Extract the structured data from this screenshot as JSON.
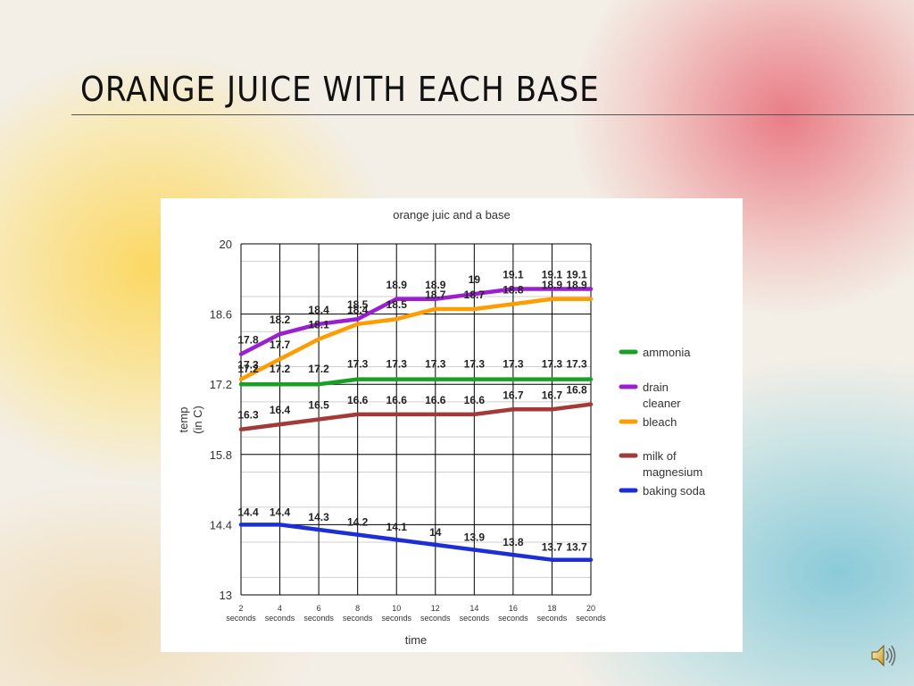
{
  "slide": {
    "title": "ORANGE JUICE WITH EACH BASE"
  },
  "icons": {
    "speaker": "speaker-icon"
  },
  "chart_data": {
    "type": "line",
    "title": "orange juic and a base",
    "xlabel": "time",
    "ylabel": [
      "temp",
      "(in C)"
    ],
    "categories": [
      [
        "2",
        "seconds"
      ],
      [
        "4",
        "seconds"
      ],
      [
        "6",
        "seconds"
      ],
      [
        "8",
        "seconds"
      ],
      [
        "10",
        "seconds"
      ],
      [
        "12",
        "seconds"
      ],
      [
        "14",
        "seconds"
      ],
      [
        "16",
        "seconds"
      ],
      [
        "18",
        "seconds"
      ],
      [
        "20",
        "seconds"
      ]
    ],
    "ylim": [
      13,
      20
    ],
    "yticks": [
      "13",
      "14.4",
      "15.8",
      "17.2",
      "18.6",
      "20"
    ],
    "grid": true,
    "legend_position": "right",
    "series": [
      {
        "name": [
          "ammonia"
        ],
        "color": "#18a025",
        "values": [
          17.2,
          17.2,
          17.2,
          17.3,
          17.3,
          17.3,
          17.3,
          17.3,
          17.3,
          17.3
        ],
        "labels": [
          "17.2",
          "17.2",
          "17.2",
          "17.3",
          "17.3",
          "17.3",
          "17.3",
          "17.3",
          "17.3",
          "17.3"
        ]
      },
      {
        "name": [
          "drain",
          "cleaner"
        ],
        "color": "#9b1ed2",
        "values": [
          17.8,
          18.2,
          18.4,
          18.5,
          18.9,
          18.9,
          19,
          19.1,
          19.1,
          19.1
        ],
        "labels": [
          "17.8",
          "18.2",
          "18.4",
          "18.5",
          "18.9",
          "18.9",
          "19",
          "19.1",
          "19.1",
          "19.1"
        ]
      },
      {
        "name": [
          "bleach"
        ],
        "color": "#ff9c00",
        "values": [
          17.3,
          17.7,
          18.1,
          18.4,
          18.5,
          18.7,
          18.7,
          18.8,
          18.9,
          18.9
        ],
        "labels": [
          "17.3",
          "17.7",
          "18.1",
          "18.4",
          "18.5",
          "18.7",
          "18.7",
          "18.8",
          "18.9",
          "18.9"
        ]
      },
      {
        "name": [
          "milk of",
          "magnesium"
        ],
        "color": "#a33a3a",
        "values": [
          16.3,
          16.4,
          16.5,
          16.6,
          16.6,
          16.6,
          16.6,
          16.7,
          16.7,
          16.8
        ],
        "labels": [
          "16.3",
          "16.4",
          "16.5",
          "16.6",
          "16.6",
          "16.6",
          "16.6",
          "16.7",
          "16.7",
          "16.8"
        ]
      },
      {
        "name": [
          "baking soda"
        ],
        "color": "#1c2ed8",
        "values": [
          14.4,
          14.4,
          14.3,
          14.2,
          14.1,
          14,
          13.9,
          13.8,
          13.7,
          13.7
        ],
        "labels": [
          "14.4",
          "14.4",
          "14.3",
          "14.2",
          "14.1",
          "14",
          "13.9",
          "13.8",
          "13.7",
          "13.7"
        ]
      }
    ]
  }
}
